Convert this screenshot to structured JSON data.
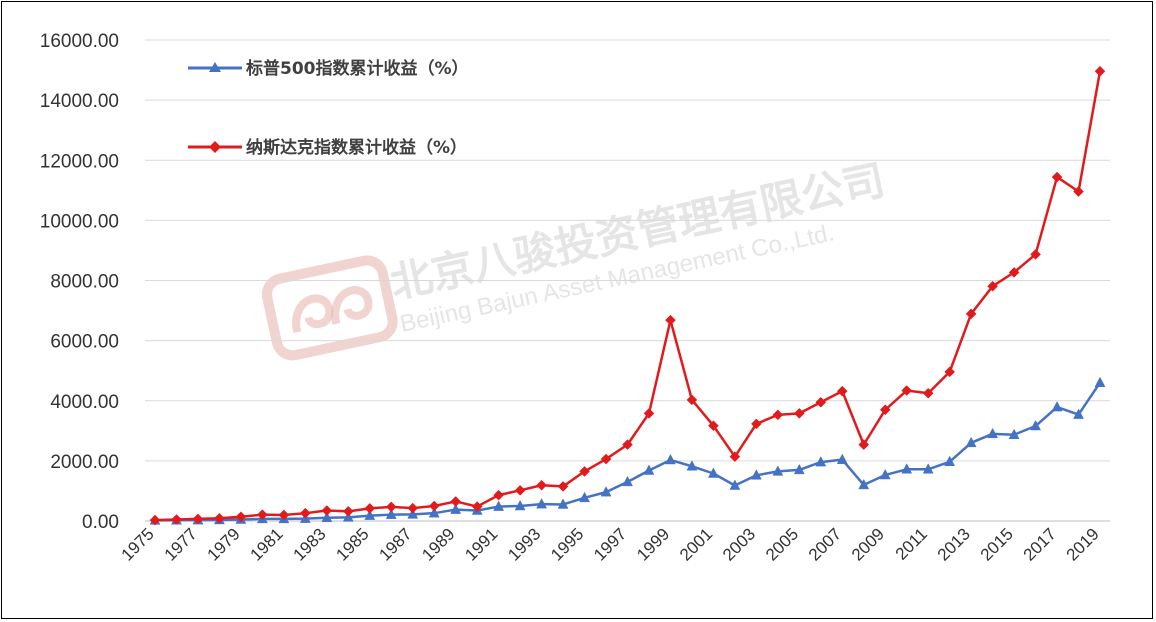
{
  "watermark": {
    "company_cn": "北京八骏投资管理有限公司",
    "company_en": "Beijing Bajun Asset Management Co.,Ltd."
  },
  "chart_data": {
    "type": "line",
    "title": "",
    "xlabel": "",
    "ylabel": "",
    "ylim": [
      0,
      16000
    ],
    "yticks": [
      "0.00",
      "2000.00",
      "4000.00",
      "6000.00",
      "8000.00",
      "10000.00",
      "12000.00",
      "14000.00",
      "16000.00"
    ],
    "xtick_labels": [
      "1975",
      "1977",
      "1979",
      "1981",
      "1983",
      "1985",
      "1987",
      "1989",
      "1991",
      "1993",
      "1995",
      "1997",
      "1999",
      "2001",
      "2003",
      "2005",
      "2007",
      "2009",
      "2011",
      "2013",
      "2015",
      "2017",
      "2019"
    ],
    "grid": "horizontal",
    "legend_position": "top-left",
    "x": [
      1975,
      1976,
      1977,
      1978,
      1979,
      1980,
      1981,
      1982,
      1983,
      1984,
      1985,
      1986,
      1987,
      1988,
      1989,
      1990,
      1991,
      1992,
      1993,
      1994,
      1995,
      1996,
      1997,
      1998,
      1999,
      2000,
      2001,
      2002,
      2003,
      2004,
      2005,
      2006,
      2007,
      2008,
      2009,
      2010,
      2011,
      2012,
      2013,
      2014,
      2015,
      2016,
      2017,
      2018,
      2019
    ],
    "series": [
      {
        "name": "标普500指数累计收益（%）",
        "color": "#4472C4",
        "marker": "triangle",
        "values": [
          20,
          25,
          30,
          35,
          50,
          70,
          70,
          80,
          110,
          120,
          180,
          210,
          220,
          260,
          380,
          350,
          480,
          500,
          560,
          550,
          770,
          960,
          1300,
          1680,
          2030,
          1820,
          1580,
          1180,
          1520,
          1650,
          1700,
          1960,
          2040,
          1200,
          1530,
          1720,
          1720,
          1970,
          2600,
          2900,
          2870,
          3160,
          3790,
          3540,
          4600
        ]
      },
      {
        "name": "纳斯达克指数累计收益（%）",
        "color": "#E31A1C",
        "marker": "diamond",
        "values": [
          30,
          50,
          70,
          90,
          140,
          210,
          200,
          260,
          350,
          320,
          420,
          470,
          430,
          500,
          650,
          480,
          860,
          1020,
          1190,
          1150,
          1650,
          2060,
          2540,
          3580,
          6680,
          4030,
          3170,
          2140,
          3230,
          3530,
          3580,
          3950,
          4320,
          2540,
          3700,
          4340,
          4250,
          4960,
          6890,
          7810,
          8270,
          8870,
          11440,
          10960,
          14960
        ]
      }
    ]
  }
}
